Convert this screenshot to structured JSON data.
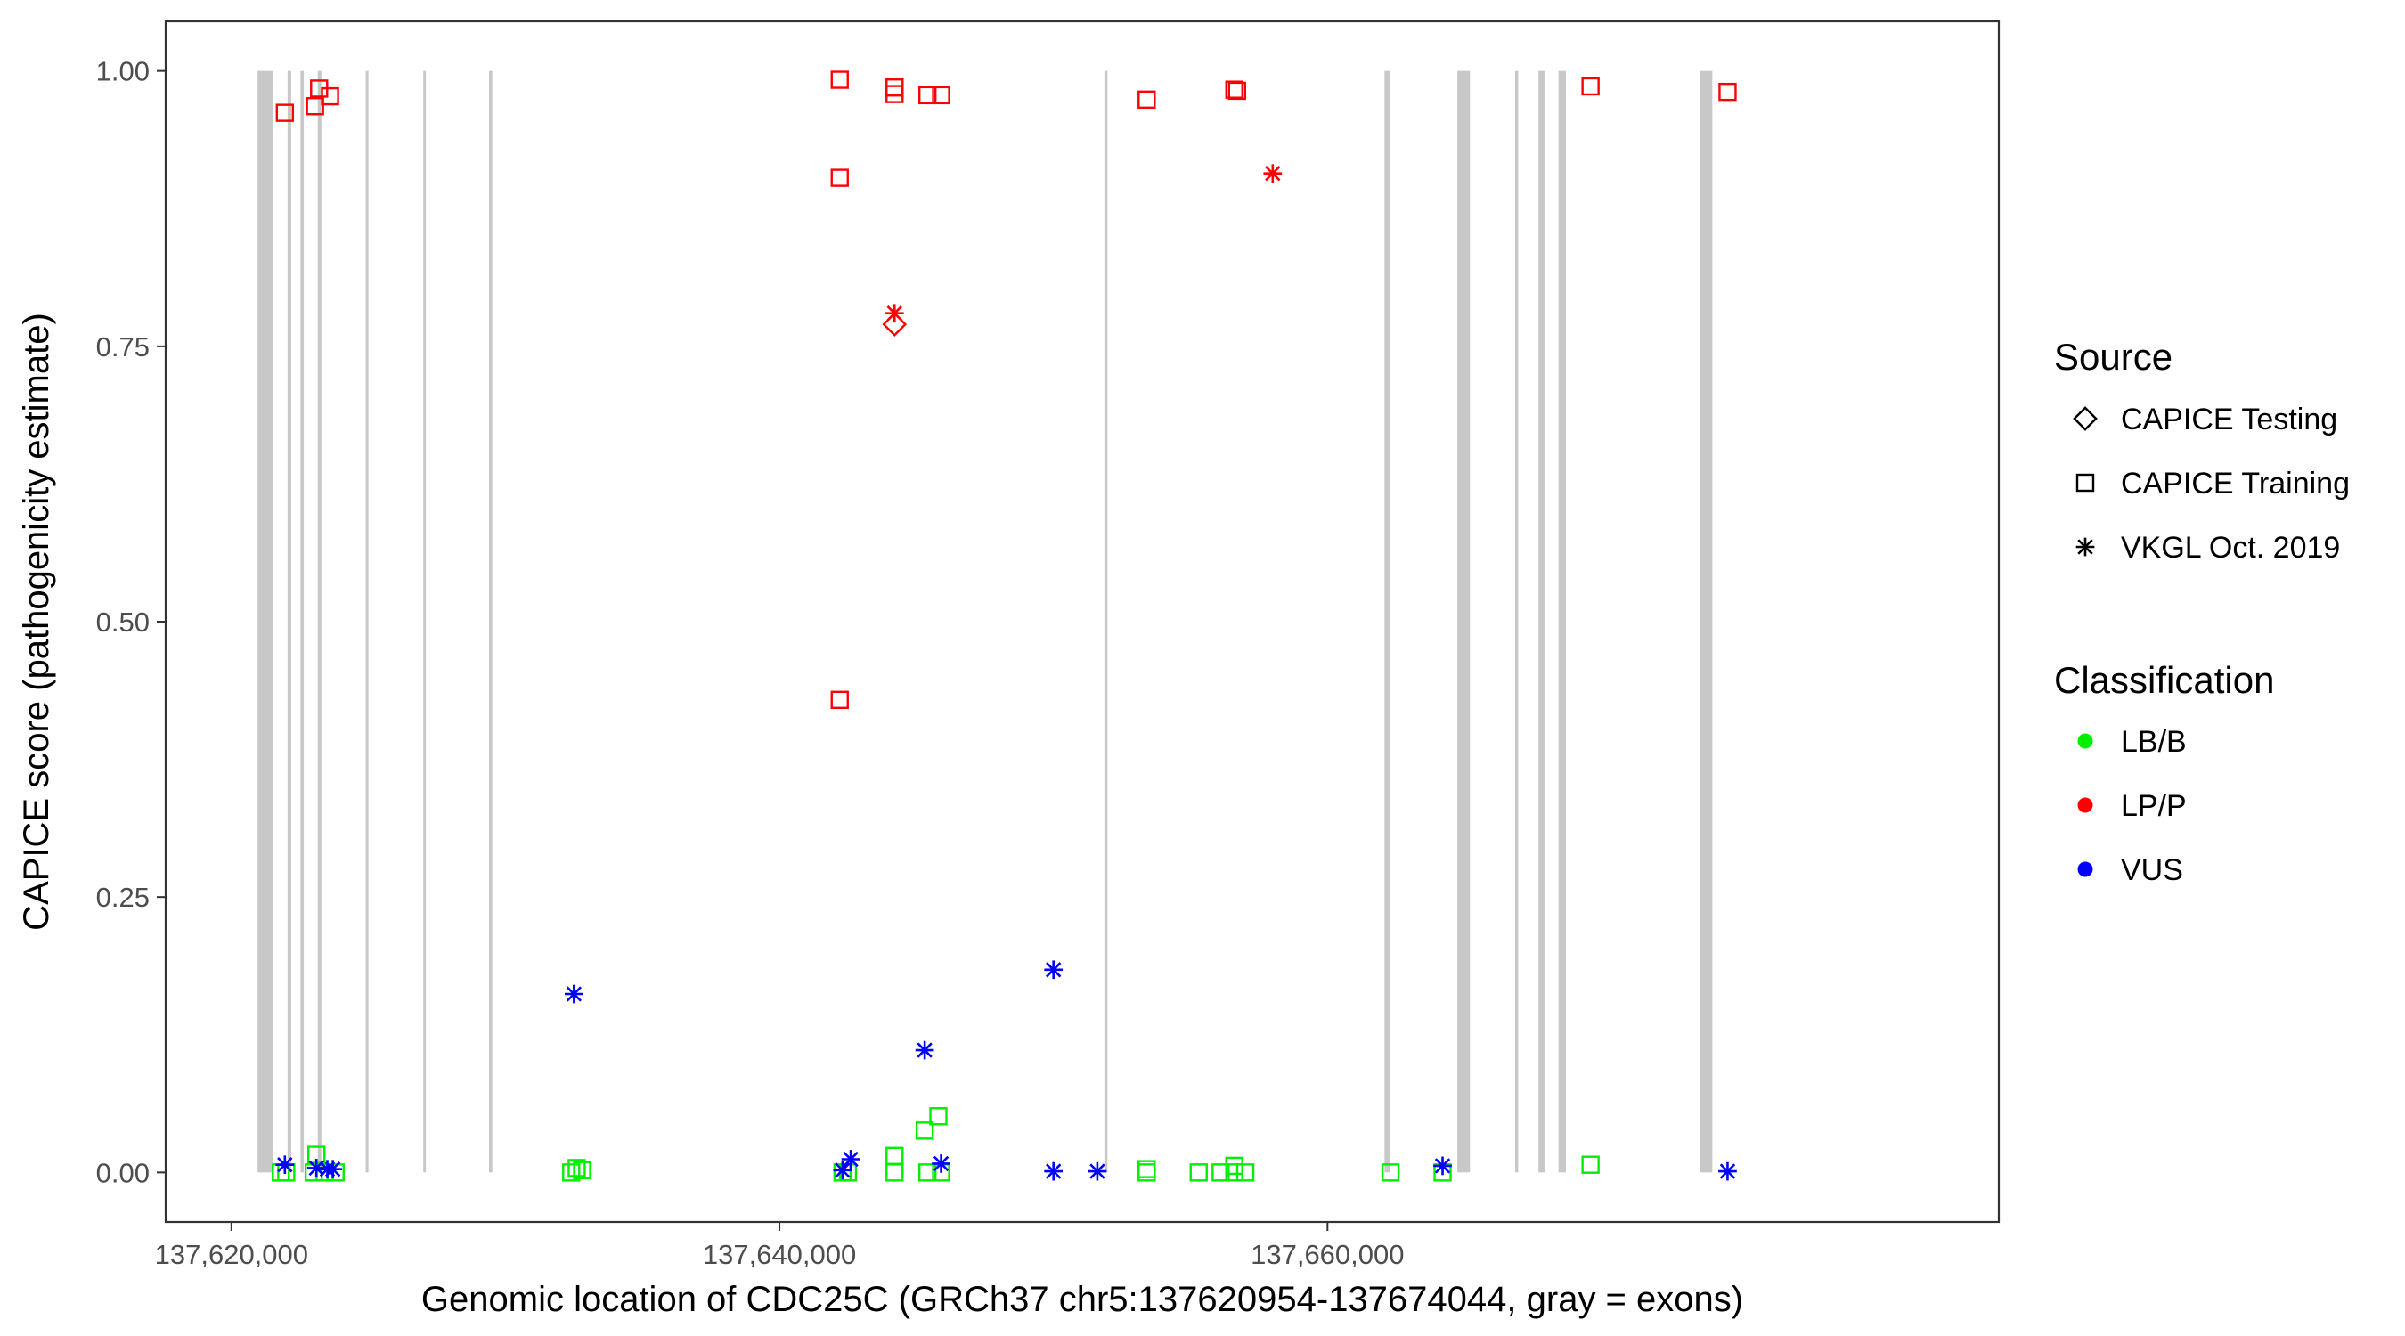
{
  "chart_data": {
    "type": "scatter",
    "title": "",
    "xlabel": "Genomic location of CDC25C (GRCh37 chr5:137620954-137674044, gray = exons)",
    "ylabel": "CAPICE score (pathogenicity estimate)",
    "xlim": [
      137617600,
      137684500
    ],
    "ylim": [
      -0.045,
      1.045
    ],
    "x_ticks": [
      {
        "value": 137620000,
        "label": "137,620,000"
      },
      {
        "value": 137640000,
        "label": "137,640,000"
      },
      {
        "value": 137660000,
        "label": "137,660,000"
      }
    ],
    "y_ticks": [
      {
        "value": 0.0,
        "label": "0.00"
      },
      {
        "value": 0.25,
        "label": "0.25"
      },
      {
        "value": 0.5,
        "label": "0.50"
      },
      {
        "value": 0.75,
        "label": "0.75"
      },
      {
        "value": 1.0,
        "label": "1.00"
      }
    ],
    "grid": false,
    "legend_position": "right",
    "exon_color": "#c8c8c8",
    "exons": [
      [
        137620954,
        137621500
      ],
      [
        137622050,
        137622180
      ],
      [
        137622520,
        137622640
      ],
      [
        137623150,
        137623280
      ],
      [
        137624900,
        137625000
      ],
      [
        137627000,
        137627090
      ],
      [
        137629400,
        137629520
      ],
      [
        137651860,
        137651970
      ],
      [
        137662080,
        137662300
      ],
      [
        137664740,
        137665200
      ],
      [
        137666850,
        137666960
      ],
      [
        137667700,
        137667920
      ],
      [
        137668430,
        137668700
      ],
      [
        137673600,
        137674044
      ]
    ],
    "source_legend": {
      "title": "Source",
      "items": [
        {
          "label": "CAPICE Testing",
          "shape": "diamond"
        },
        {
          "label": "CAPICE Training",
          "shape": "square"
        },
        {
          "label": "VKGL Oct. 2019",
          "shape": "asterisk"
        }
      ]
    },
    "classification_legend": {
      "title": "Classification",
      "items": [
        {
          "label": "LB/B",
          "color": "#00ee00"
        },
        {
          "label": "LP/P",
          "color": "#ff0000"
        },
        {
          "label": "VUS",
          "color": "#0000ff"
        }
      ]
    },
    "series": [
      {
        "name": "CAPICE Training",
        "shape": "square",
        "points": [
          [
            137621950,
            0.962,
            "LP/P"
          ],
          [
            137623050,
            0.968,
            "LP/P"
          ],
          [
            137623200,
            0.984,
            "LP/P"
          ],
          [
            137623600,
            0.977,
            "LP/P"
          ],
          [
            137642200,
            0.992,
            "LP/P"
          ],
          [
            137642200,
            0.903,
            "LP/P"
          ],
          [
            137642200,
            0.429,
            "LP/P"
          ],
          [
            137644200,
            0.985,
            "LP/P"
          ],
          [
            137644200,
            0.979,
            "LP/P"
          ],
          [
            137645400,
            0.978,
            "LP/P"
          ],
          [
            137645900,
            0.978,
            "LP/P"
          ],
          [
            137653400,
            0.974,
            "LP/P"
          ],
          [
            137656600,
            0.983,
            "LP/P"
          ],
          [
            137656700,
            0.982,
            "LP/P"
          ],
          [
            137669600,
            0.986,
            "LP/P"
          ],
          [
            137674600,
            0.981,
            "LP/P"
          ],
          [
            137621800,
            0.0,
            "LB/B"
          ],
          [
            137622000,
            0.0,
            "LB/B"
          ],
          [
            137623000,
            0.0,
            "LB/B"
          ],
          [
            137623100,
            0.016,
            "LB/B"
          ],
          [
            137623400,
            0.0,
            "LB/B"
          ],
          [
            137623800,
            0.0,
            "LB/B"
          ],
          [
            137632400,
            0.0,
            "LB/B"
          ],
          [
            137632600,
            0.004,
            "LB/B"
          ],
          [
            137632800,
            0.002,
            "LB/B"
          ],
          [
            137642300,
            0.0,
            "LB/B"
          ],
          [
            137642500,
            0.0,
            "LB/B"
          ],
          [
            137644200,
            0.015,
            "LB/B"
          ],
          [
            137644200,
            0.0,
            "LB/B"
          ],
          [
            137645300,
            0.038,
            "LB/B"
          ],
          [
            137645800,
            0.051,
            "LB/B"
          ],
          [
            137645400,
            0.0,
            "LB/B"
          ],
          [
            137645900,
            0.0,
            "LB/B"
          ],
          [
            137653400,
            0.003,
            "LB/B"
          ],
          [
            137653400,
            0.0,
            "LB/B"
          ],
          [
            137655300,
            0.0,
            "LB/B"
          ],
          [
            137656100,
            0.0,
            "LB/B"
          ],
          [
            137656600,
            0.006,
            "LB/B"
          ],
          [
            137656600,
            0.0,
            "LB/B"
          ],
          [
            137657000,
            0.0,
            "LB/B"
          ],
          [
            137662300,
            0.0,
            "LB/B"
          ],
          [
            137664200,
            0.0,
            "LB/B"
          ],
          [
            137669600,
            0.007,
            "LB/B"
          ]
        ]
      },
      {
        "name": "CAPICE Testing",
        "shape": "diamond",
        "points": [
          [
            137644200,
            0.77,
            "LP/P"
          ]
        ]
      },
      {
        "name": "VKGL Oct. 2019",
        "shape": "asterisk",
        "points": [
          [
            137644200,
            0.78,
            "LP/P"
          ],
          [
            137658000,
            0.907,
            "LP/P"
          ],
          [
            137621950,
            0.007,
            "VUS"
          ],
          [
            137623100,
            0.004,
            "VUS"
          ],
          [
            137623500,
            0.003,
            "VUS"
          ],
          [
            137623700,
            0.003,
            "VUS"
          ],
          [
            137632500,
            0.162,
            "VUS"
          ],
          [
            137642300,
            0.002,
            "VUS"
          ],
          [
            137642600,
            0.012,
            "VUS"
          ],
          [
            137645300,
            0.111,
            "VUS"
          ],
          [
            137645900,
            0.008,
            "VUS"
          ],
          [
            137650000,
            0.184,
            "VUS"
          ],
          [
            137650000,
            0.001,
            "VUS"
          ],
          [
            137651600,
            0.001,
            "VUS"
          ],
          [
            137664200,
            0.006,
            "VUS"
          ],
          [
            137674600,
            0.001,
            "VUS"
          ]
        ]
      }
    ]
  }
}
